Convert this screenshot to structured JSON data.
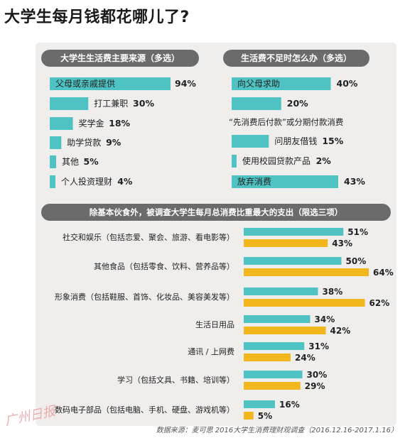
{
  "title": "大学生每月钱都花哪儿了?",
  "colors": {
    "teal": "#4fc3c3",
    "gold": "#f2b71d",
    "pill": "#6b6b6b",
    "panel": "#f0eeec"
  },
  "chart_data": [
    {
      "type": "bar",
      "title": "大学生生活费主要来源（多选）",
      "categories": [
        "父母或亲戚提供",
        "打工兼职",
        "奖学金",
        "助学贷款",
        "其他",
        "个人投资理财"
      ],
      "values": [
        94,
        30,
        18,
        9,
        5,
        4
      ],
      "value_labels": [
        "94%",
        "30%",
        "18%",
        "9%",
        "5%",
        "4%"
      ],
      "unit": "%"
    },
    {
      "type": "bar",
      "title": "生活费不足时怎么办（多选）",
      "categories": [
        "向父母求助",
        "",
        "“先消费后付款”或分期付款消费",
        "问朋友借钱",
        "使用校园贷款产品",
        "放弃消费"
      ],
      "values": [
        40,
        20,
        null,
        15,
        2,
        43
      ],
      "value_labels": [
        "40%",
        "20%",
        "",
        "15%",
        "2%",
        "43%"
      ],
      "unit": "%"
    },
    {
      "type": "bar",
      "title": "除基本伙食外，被调查大学生每月总消费比重最大的支出（限选三项）",
      "categories": [
        "社交和娱乐（包括恋爱、聚会、旅游、看电影等）",
        "其他食品（包括零食、饮料、营养品等）",
        "形象消费（包括鞋服、首饰、化妆品、美容美发等）",
        "生活日用品",
        "通讯 / 上网费",
        "学习（包括文具、书籍、培训等）",
        "数码电子部品（包括电脑、手机、硬盘、游戏机等）"
      ],
      "series": [
        {
          "values": [
            51,
            50,
            38,
            34,
            31,
            30,
            16
          ],
          "value_labels": [
            "51%",
            "50%",
            "38%",
            "34%",
            "31%",
            "30%",
            "16%"
          ]
        },
        {
          "values": [
            43,
            64,
            62,
            42,
            24,
            29,
            5
          ],
          "value_labels": [
            "43%",
            "64%",
            "62%",
            "42%",
            "24%",
            "29%",
            "5%"
          ]
        }
      ],
      "unit": "%"
    }
  ],
  "watermark": "广州日报",
  "source": "数据来源：麦可思 2016大学生消费理财观调查（2016.12.16-2017.1.16）"
}
